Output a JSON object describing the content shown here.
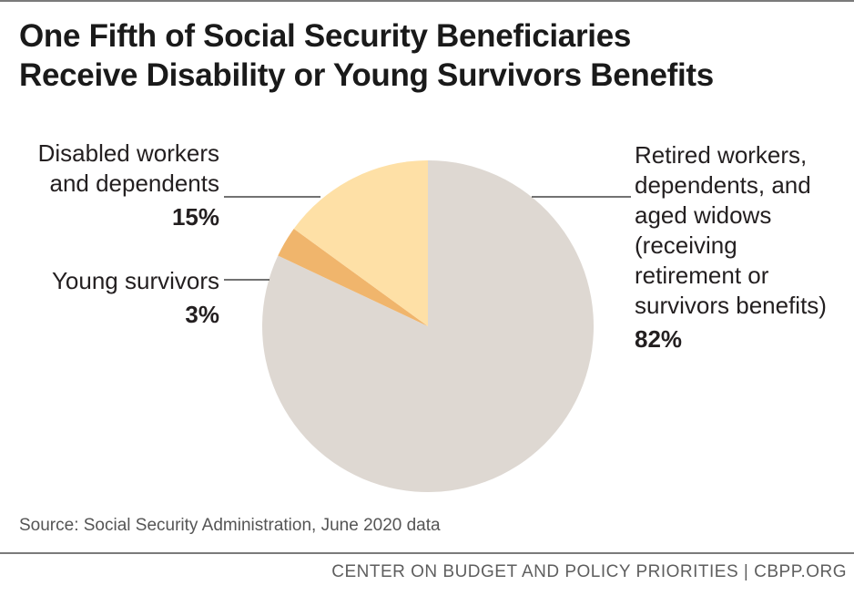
{
  "title_lines": [
    "One Fifth of Social Security Beneficiaries",
    "Receive Disability or Young Survivors Benefits"
  ],
  "source": "Source: Social Security Administration, June 2020 data",
  "footer": "CENTER ON BUDGET AND POLICY PRIORITIES | CBPP.ORG",
  "colors": {
    "retired": "#ded8d2",
    "young": "#f0b56c",
    "disabled": "#fee0a6",
    "leader": "#444444"
  },
  "chart_data": {
    "type": "pie",
    "title": "One Fifth of Social Security Beneficiaries Receive Disability or Young Survivors Benefits",
    "legend": "none",
    "slices": [
      {
        "key": "retired",
        "label_lines": [
          "Retired workers,",
          "dependents, and",
          "aged widows",
          "(receiving",
          "retirement or",
          "survivors benefits)"
        ],
        "value": 82,
        "value_label": "82%"
      },
      {
        "key": "young",
        "label_lines": [
          "Young survivors"
        ],
        "value": 3,
        "value_label": "3%"
      },
      {
        "key": "disabled",
        "label_lines": [
          "Disabled workers",
          "and dependents"
        ],
        "value": 15,
        "value_label": "15%"
      }
    ]
  }
}
